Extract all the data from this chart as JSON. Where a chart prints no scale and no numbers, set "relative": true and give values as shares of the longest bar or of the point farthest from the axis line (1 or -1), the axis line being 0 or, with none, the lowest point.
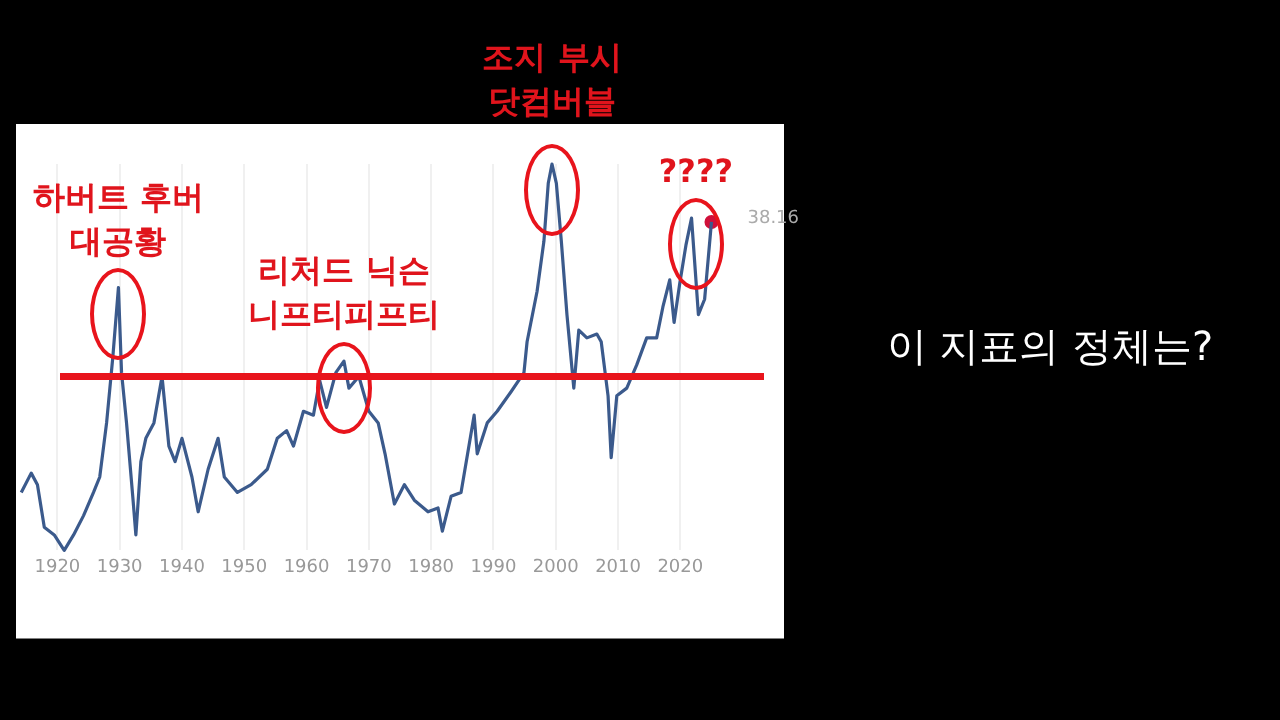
{
  "chart_data": {
    "type": "line",
    "relative": true,
    "xlim": [
      1914,
      2036
    ],
    "xticks": [
      1920,
      1930,
      1940,
      1950,
      1960,
      1970,
      1980,
      1990,
      2000,
      2010,
      2020
    ],
    "grid": "x",
    "legend": false,
    "marker": "none",
    "line_style": "solid",
    "series": [
      {
        "type": "line",
        "color": "#3b5a8c",
        "x": [
          1914.2,
          1915.8,
          1916.8,
          1917.9,
          1919.5,
          1921.1,
          1922.6,
          1924.2,
          1925.8,
          1926.8,
          1927.9,
          1928.9,
          1929.8,
          1930.3,
          1931.1,
          1932.1,
          1932.6,
          1933.4,
          1934.2,
          1935.5,
          1936.8,
          1937.9,
          1938.9,
          1940,
          1941.6,
          1942.6,
          1944.2,
          1945.8,
          1946.8,
          1948.9,
          1951.1,
          1953.7,
          1955.3,
          1956.8,
          1957.9,
          1959.5,
          1961.1,
          1962.1,
          1963.2,
          1964.7,
          1966,
          1966.8,
          1968.4,
          1970,
          1971.5,
          1972.6,
          1974.1,
          1975.7,
          1977.3,
          1979.5,
          1981.1,
          1981.8,
          1983.2,
          1984.8,
          1986.9,
          1987.4,
          1989,
          1990.6,
          1992.8,
          1994.9,
          1995.4,
          1997,
          1998.1,
          1998.8,
          1999.4,
          2000.1,
          2000.9,
          2001.8,
          2002.9,
          2003.7,
          2005,
          2006.6,
          2007.3,
          2008.4,
          2008.9,
          2009.8,
          2011.4,
          2013,
          2014.6,
          2016.2,
          2017.2,
          2018.3,
          2019,
          2019.9,
          2020.9,
          2021.8,
          2022.9,
          2023.9,
          2025
        ],
        "values": [
          0.15,
          0.2,
          0.17,
          0.06,
          0.04,
          0,
          0.04,
          0.09,
          0.15,
          0.19,
          0.33,
          0.5,
          0.68,
          0.46,
          0.33,
          0.14,
          0.04,
          0.23,
          0.29,
          0.33,
          0.45,
          0.27,
          0.23,
          0.29,
          0.19,
          0.1,
          0.21,
          0.29,
          0.19,
          0.15,
          0.17,
          0.21,
          0.29,
          0.31,
          0.27,
          0.36,
          0.35,
          0.44,
          0.37,
          0.46,
          0.49,
          0.42,
          0.45,
          0.36,
          0.33,
          0.25,
          0.12,
          0.17,
          0.13,
          0.1,
          0.11,
          0.05,
          0.14,
          0.15,
          0.35,
          0.25,
          0.33,
          0.36,
          0.41,
          0.46,
          0.54,
          0.67,
          0.8,
          0.95,
          1,
          0.95,
          0.8,
          0.61,
          0.42,
          0.57,
          0.55,
          0.56,
          0.54,
          0.4,
          0.24,
          0.4,
          0.42,
          0.48,
          0.55,
          0.55,
          0.63,
          0.7,
          0.59,
          0.69,
          0.79,
          0.86,
          0.61,
          0.65,
          0.85
        ]
      },
      {
        "type": "scatter",
        "marker": "circle",
        "color": "#d0103a",
        "x": [
          2025
        ],
        "values": [
          0.85
        ]
      }
    ],
    "ref_lines": [
      {
        "axis": "y",
        "value": 0.45,
        "color": "#e8141c"
      }
    ],
    "annotations": [
      {
        "text": "하버트 후버\n대공황",
        "x": 1929.8,
        "y": 0.68
      },
      {
        "text": "리처드 닉슨\n니프티피프티",
        "x": 1966,
        "y": 0.49
      },
      {
        "text": "조지 부시\n닷컴버블",
        "x": 1999.4,
        "y": 1
      },
      {
        "text": "????",
        "x": 2022.5,
        "y": 0.86
      },
      {
        "text": "38.16",
        "x": 2025,
        "y": 0.85
      },
      "이 지표의 정체는?"
    ]
  }
}
